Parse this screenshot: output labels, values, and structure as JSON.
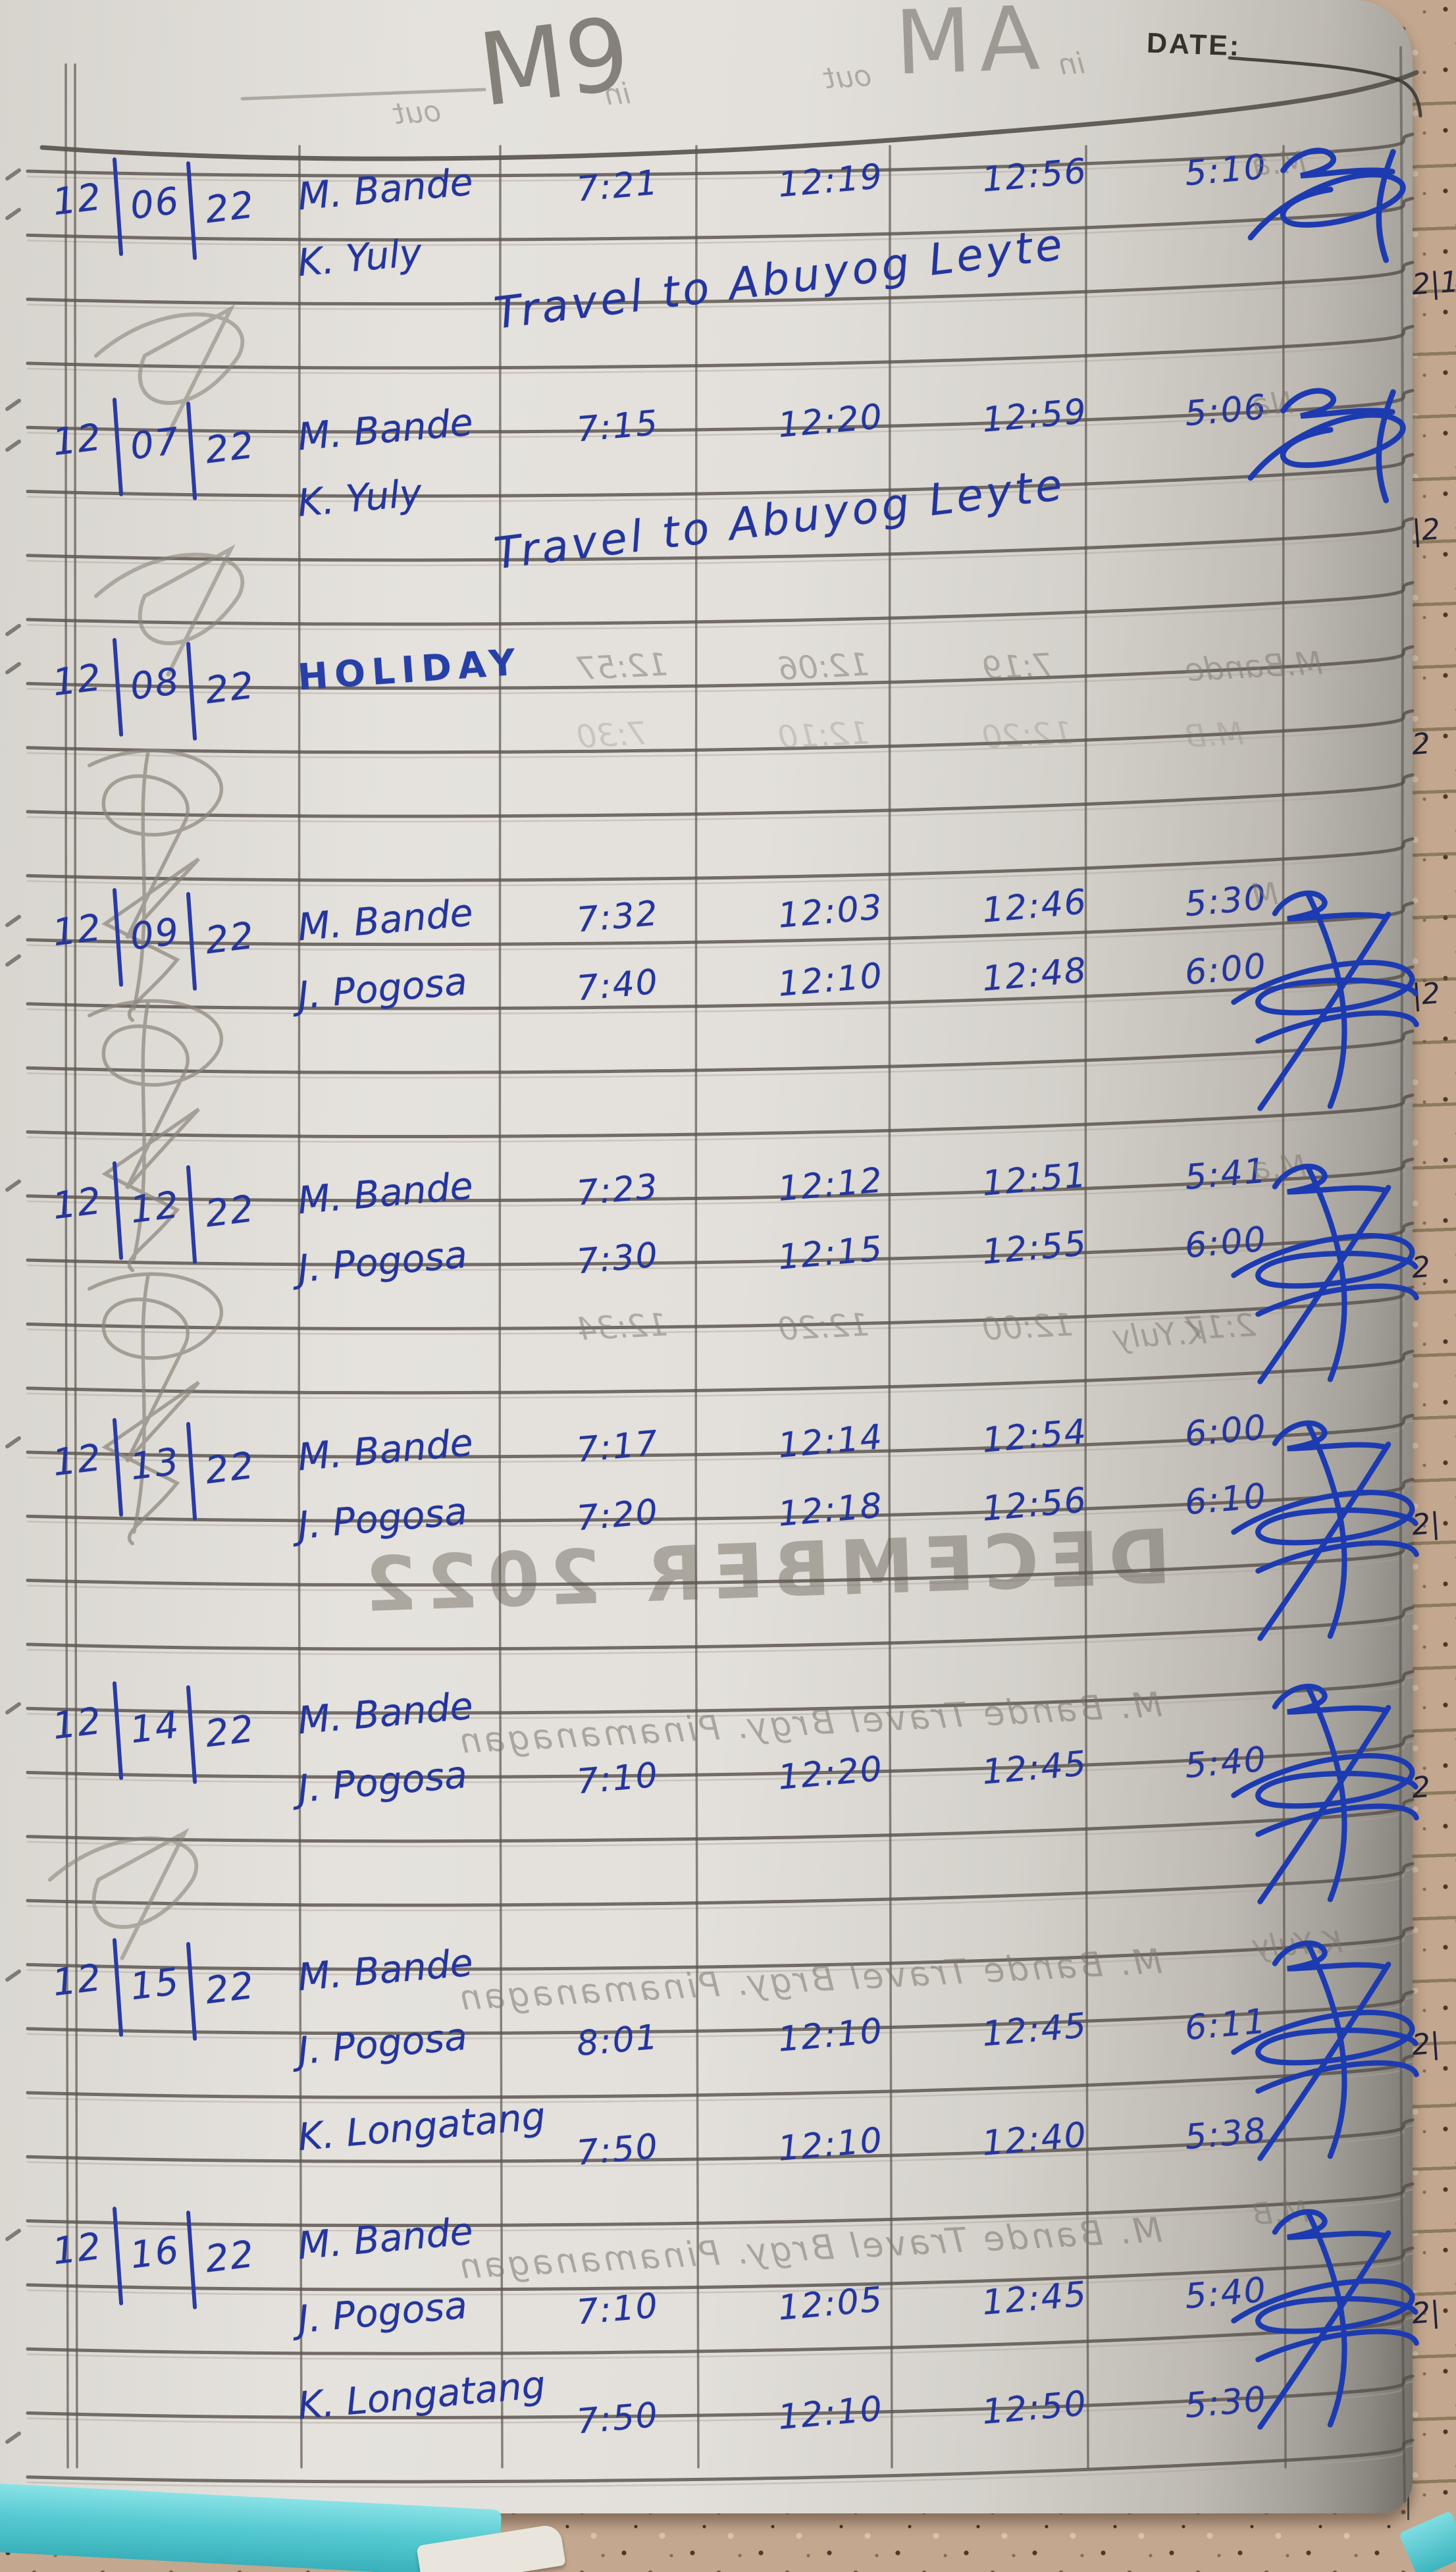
{
  "header": {
    "pencil_left": "M9",
    "pencil_right": "MA",
    "date_label": "DATE:"
  },
  "ghost_column_labels": [
    "out",
    "in",
    "out",
    "in"
  ],
  "palette": {
    "ink_blue": "#24359c",
    "signature_blue": "#1d3bb0",
    "pencil_gray": "#7c766b",
    "paper": "#e3e0db",
    "next_page": "#d5cda1",
    "teal_folder": "#57cbd2"
  },
  "rows": [
    {
      "date": "12/06/22",
      "edge_mark": "2|1",
      "signature": true,
      "scribble": "small",
      "ghost_right": "M.a",
      "entries": [
        {
          "name": "M. Bande",
          "times": [
            "7:21",
            "12:19",
            "12:56",
            "5:10"
          ]
        },
        {
          "name": "K. Yuly",
          "note": "Travel to Abuyog Leyte"
        }
      ]
    },
    {
      "date": "12/07/22",
      "edge_mark": "|2",
      "signature": true,
      "scribble": "small",
      "ghost_right": "Na",
      "entries": [
        {
          "name": "M. Bande",
          "times": [
            "7:15",
            "12:20",
            "12:59",
            "5:06"
          ]
        },
        {
          "name": "K. Yuly",
          "note": "Travel to Abuyog Leyte"
        }
      ]
    },
    {
      "date": "12/08/22",
      "edge_mark": "2",
      "signature": false,
      "scribble": "big",
      "entries": [
        {
          "name": "HOLIDAY"
        }
      ],
      "ghost_lines": [
        {
          "line": 0,
          "values": [
            "12:57",
            "12:06",
            "7:19",
            "M.Bande"
          ]
        },
        {
          "line": 1,
          "values": [
            "7:30",
            "12:10",
            "12:20",
            "M.B"
          ]
        }
      ]
    },
    {
      "date": "12/09/22",
      "edge_mark": "|2",
      "signature": true,
      "scribble": "big",
      "ghost_right": "M",
      "entries": [
        {
          "name": "M. Bande",
          "times": [
            "7:32",
            "12:03",
            "12:46",
            "5:30"
          ]
        },
        {
          "name": "J. Pogosa",
          "times": [
            "7:40",
            "12:10",
            "12:48",
            "6:00"
          ]
        }
      ]
    },
    {
      "date": "12/12/22",
      "edge_mark": "2",
      "signature": true,
      "scribble": "big",
      "ghost_right": "M.a",
      "entries": [
        {
          "name": "M. Bande",
          "times": [
            "7:23",
            "12:12",
            "12:51",
            "5:41"
          ]
        },
        {
          "name": "J. Pogosa",
          "times": [
            "7:30",
            "12:15",
            "12:55",
            "6:00"
          ]
        }
      ],
      "ghost_lines": [
        {
          "line": 2,
          "values": [
            "12:34",
            "12:20",
            "12:00",
            "2:17",
            "K.Yuly"
          ]
        }
      ]
    },
    {
      "date": "12/13/22",
      "edge_mark": "2|",
      "signature": true,
      "ghost_stamp": "DECEMBER 2022",
      "entries": [
        {
          "name": "M. Bande",
          "times": [
            "7:17",
            "12:14",
            "12:54",
            "6:00"
          ]
        },
        {
          "name": "J. Pogosa",
          "times": [
            "7:20",
            "12:18",
            "12:56",
            "6:10"
          ]
        }
      ]
    },
    {
      "date": "12/14/22",
      "edge_mark": "2",
      "signature": true,
      "scribble": "small",
      "entries": [
        {
          "name": "M. Bande",
          "ghost_note": "M. Bande   Travel Brgy. Pinamanagan"
        },
        {
          "name": "J. Pogosa",
          "times": [
            "7:10",
            "12:20",
            "12:45",
            "5:40"
          ]
        }
      ]
    },
    {
      "date": "12/15/22",
      "edge_mark": "2|",
      "signature": true,
      "ghost_right": "K.Yuly",
      "entries": [
        {
          "name": "M. Bande",
          "ghost_note": "M. Bande   Travel Brgy. Pinamanagan"
        },
        {
          "name": "J. Pogosa",
          "times": [
            "8:01",
            "12:10",
            "12:45",
            "6:11"
          ]
        },
        {
          "name": "K. Longatang",
          "times": [
            "7:50",
            "12:10",
            "12:40",
            "5:38"
          ]
        }
      ]
    },
    {
      "date": "12/16/22",
      "edge_mark": "2|",
      "signature": true,
      "ghost_right": "M.B",
      "entries": [
        {
          "name": "M. Bande",
          "ghost_note": "M. Bande   Travel Brgy. Pinamanagan"
        },
        {
          "name": "J. Pogosa",
          "times": [
            "7:10",
            "12:05",
            "12:45",
            "5:40"
          ]
        },
        {
          "name": "K. Longatang",
          "times": [
            "7:50",
            "12:10",
            "12:50",
            "5:30"
          ]
        }
      ]
    }
  ]
}
